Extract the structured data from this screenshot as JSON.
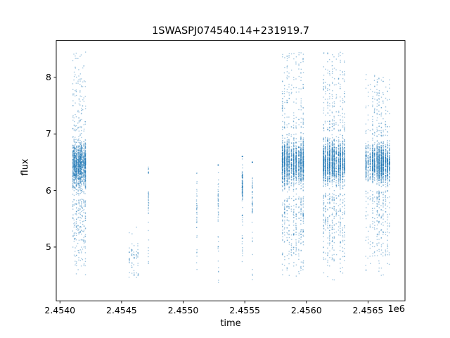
{
  "chart_data": {
    "type": "scatter",
    "title": "1SWASPJ074540.14+231919.7",
    "xlabel": "time",
    "ylabel": "flux",
    "x_offset_label": "1e6",
    "xlim": [
      2453970,
      2456800
    ],
    "ylim": [
      4.05,
      8.65
    ],
    "x_ticks": {
      "values": [
        2454000,
        2454500,
        2455000,
        2455500,
        2456000,
        2456500
      ],
      "labels": [
        "2.4540",
        "2.4545",
        "2.4550",
        "2.4555",
        "2.4560",
        "2.4565"
      ]
    },
    "y_ticks": {
      "values": [
        5,
        6,
        7,
        8
      ],
      "labels": [
        "5",
        "6",
        "7",
        "8"
      ]
    },
    "grid": false,
    "legend": null,
    "marker_color": "#1f77b4",
    "marker_alpha": 0.42,
    "marker_size_px": 1.4,
    "clusters": [
      {
        "t_center": 2454155,
        "t_halfwidth": 55,
        "nights": 11,
        "count": 1600,
        "core": [
          5.85,
          7.05
        ],
        "core_frac": 0.8,
        "tail": [
          4.45,
          8.45
        ]
      },
      {
        "t_center": 2454600,
        "t_halfwidth": 45,
        "nights": 5,
        "count": 70,
        "core": [
          4.55,
          5.15
        ],
        "core_frac": 0.7,
        "tail": [
          4.45,
          5.65
        ]
      },
      {
        "t_center": 2454718,
        "t_halfwidth": 4,
        "nights": 1,
        "count": 45,
        "core": [
          5.2,
          6.3
        ],
        "core_frac": 0.6,
        "tail": [
          4.4,
          6.5
        ]
      },
      {
        "t_center": 2455110,
        "t_halfwidth": 4,
        "nights": 1,
        "count": 40,
        "core": [
          5.0,
          6.3
        ],
        "core_frac": 0.6,
        "tail": [
          4.35,
          6.35
        ]
      },
      {
        "t_center": 2455285,
        "t_halfwidth": 4,
        "nights": 1,
        "count": 55,
        "core": [
          5.2,
          6.45
        ],
        "core_frac": 0.6,
        "tail": [
          4.3,
          6.45
        ]
      },
      {
        "t_center": 2455480,
        "t_halfwidth": 5,
        "nights": 1,
        "count": 130,
        "core": [
          5.6,
          6.6
        ],
        "core_frac": 0.65,
        "tail": [
          4.3,
          6.6
        ]
      },
      {
        "t_center": 2455560,
        "t_halfwidth": 4,
        "nights": 1,
        "count": 60,
        "core": [
          5.3,
          6.5
        ],
        "core_frac": 0.6,
        "tail": [
          4.3,
          6.5
        ]
      },
      {
        "t_center": 2455890,
        "t_halfwidth": 95,
        "nights": 10,
        "count": 2000,
        "core": [
          5.9,
          7.1
        ],
        "core_frac": 0.78,
        "tail": [
          4.3,
          8.45
        ]
      },
      {
        "t_center": 2456225,
        "t_halfwidth": 95,
        "nights": 11,
        "count": 2200,
        "core": [
          5.95,
          7.05
        ],
        "core_frac": 0.78,
        "tail": [
          4.35,
          8.45
        ]
      },
      {
        "t_center": 2456580,
        "t_halfwidth": 105,
        "nights": 12,
        "count": 2000,
        "core": [
          6.0,
          6.95
        ],
        "core_frac": 0.8,
        "tail": [
          4.4,
          8.05
        ]
      }
    ]
  }
}
